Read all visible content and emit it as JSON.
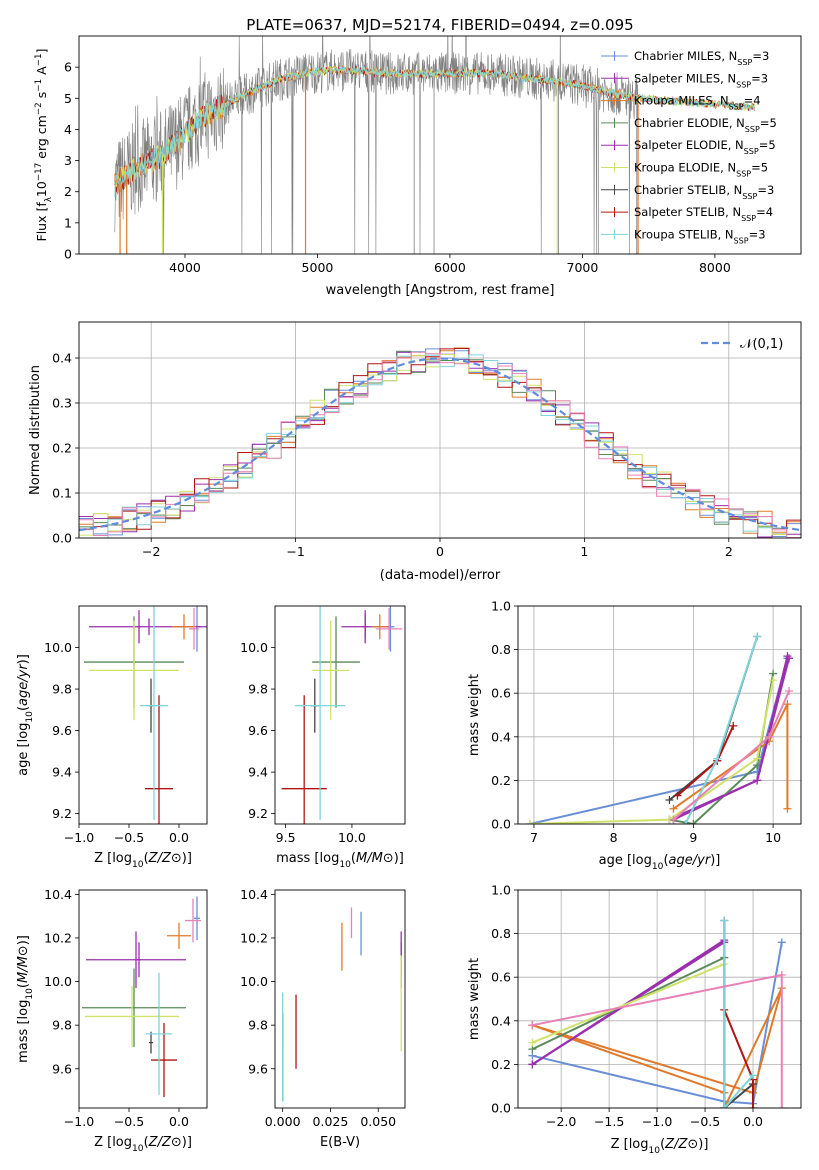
{
  "figure_title": "PLATE=0637, MJD=52174, FIBERID=0494, z=0.095",
  "colors": {
    "Chabrier MILES": "#6a8fd6",
    "Salpeter MILES": "#9b2fae",
    "Kroupa MILES": "#e07a2a",
    "Chabrier ELODIE": "#5a8a5a",
    "Salpeter ELODIE": "#9b2fae",
    "Kroupa ELODIE": "#cfe36a",
    "Chabrier STELIB": "#444444",
    "Salpeter STELIB": "#b01515",
    "Kroupa STELIB": "#7fd4dc",
    "data": "#808080",
    "pink": "#e882b6"
  },
  "chart_data": [
    {
      "id": "spectrum",
      "type": "line",
      "title": "PLATE=0637, MJD=52174, FIBERID=0494, z=0.095",
      "xlabel": "wavelength [Angstrom, rest frame]",
      "ylabel_parts": {
        "pre": "Flux [f",
        "sub1": "λ",
        "mid": "10",
        "sup1": "−17",
        "mid2": " erg cm",
        "sup2": "−2",
        "mid3": " s",
        "sup3": "−1",
        "mid4": " A",
        "sup4": "−1",
        "post": "]"
      },
      "xlim": [
        3200,
        8650
      ],
      "ylim": [
        0,
        7
      ],
      "xticks": [
        4000,
        5000,
        6000,
        7000,
        8000
      ],
      "yticks": [
        0,
        1,
        2,
        3,
        4,
        5,
        6
      ],
      "legend_position": "right",
      "legend": [
        {
          "name": "Chabrier MILES",
          "nssp": "3"
        },
        {
          "name": "Salpeter MILES",
          "nssp": "3"
        },
        {
          "name": "Kroupa MILES",
          "nssp": "4"
        },
        {
          "name": "Chabrier ELODIE",
          "nssp": "5"
        },
        {
          "name": "Salpeter ELODIE",
          "nssp": "5"
        },
        {
          "name": "Kroupa ELODIE",
          "nssp": "5"
        },
        {
          "name": "Chabrier STELIB",
          "nssp": "3"
        },
        {
          "name": "Salpeter STELIB",
          "nssp": "4"
        },
        {
          "name": "Kroupa STELIB",
          "nssp": "3"
        }
      ],
      "legend_nssp_label": "N",
      "legend_nssp_sub": "SSP",
      "continuum": [
        [
          3470,
          2.2
        ],
        [
          3600,
          2.7
        ],
        [
          3800,
          3.1
        ],
        [
          3950,
          3.6
        ],
        [
          4100,
          4.3
        ],
        [
          4300,
          4.8
        ],
        [
          4500,
          5.2
        ],
        [
          4700,
          5.6
        ],
        [
          4900,
          5.8
        ],
        [
          5100,
          5.9
        ],
        [
          5300,
          5.9
        ],
        [
          5500,
          5.8
        ],
        [
          5700,
          5.8
        ],
        [
          5900,
          5.8
        ],
        [
          6100,
          5.8
        ],
        [
          6300,
          5.8
        ],
        [
          6500,
          5.7
        ],
        [
          6700,
          5.6
        ],
        [
          6900,
          5.5
        ],
        [
          7100,
          5.3
        ],
        [
          7300,
          5.1
        ],
        [
          7420,
          5.0
        ]
      ],
      "data_range": [
        3470,
        7420
      ],
      "model_range": [
        3470,
        8300
      ]
    },
    {
      "id": "residuals",
      "type": "line",
      "xlabel": "(data-model)/error",
      "ylabel": "Normed distribution",
      "xlim": [
        -2.5,
        2.5
      ],
      "ylim": [
        0,
        0.48
      ],
      "xticks": [
        -2,
        -1,
        0,
        1,
        2
      ],
      "yticks": [
        0.0,
        0.1,
        0.2,
        0.3,
        0.4
      ],
      "legend_label": "𝒩(0,1)",
      "legend_position": "top-right",
      "bin_width": 0.1
    },
    {
      "id": "age-vs-Z",
      "type": "scatter",
      "xlabel": "Z [log10(Z/Z⊙)]",
      "ylabel": "age  [log10(age/yr)]",
      "xlim": [
        -1.0,
        0.28
      ],
      "ylim": [
        9.15,
        10.2
      ],
      "xticks": [
        -1.0,
        -0.5,
        0.0
      ],
      "yticks": [
        9.2,
        9.4,
        9.6,
        9.8,
        10.0
      ],
      "points": [
        {
          "x": 0.18,
          "y": 10.1,
          "xerr": 0.04,
          "yerr": 0.12,
          "c": "Chabrier MILES"
        },
        {
          "x": -0.3,
          "y": 10.1,
          "xerr": 0.6,
          "yerr": 0.04,
          "c": "Salpeter MILES"
        },
        {
          "x": 0.05,
          "y": 10.1,
          "xerr": 0.12,
          "yerr": 0.06,
          "c": "Kroupa MILES"
        },
        {
          "x": -0.45,
          "y": 9.93,
          "xerr": 0.5,
          "yerr": 0.22,
          "c": "Chabrier ELODIE"
        },
        {
          "x": -0.4,
          "y": 10.1,
          "xerr": 0.02,
          "yerr": 0.08,
          "c": "Salpeter ELODIE"
        },
        {
          "x": -0.45,
          "y": 9.89,
          "xerr": 0.45,
          "yerr": 0.24,
          "c": "Kroupa ELODIE"
        },
        {
          "x": -0.28,
          "y": 9.72,
          "xerr": 0.02,
          "yerr": 0.13,
          "c": "Chabrier STELIB"
        },
        {
          "x": -0.2,
          "y": 9.32,
          "xerr": 0.14,
          "yerr": 0.45,
          "c": "Salpeter STELIB"
        },
        {
          "x": -0.25,
          "y": 9.72,
          "xerr": 0.14,
          "yerr": 0.55,
          "c": "Kroupa STELIB"
        },
        {
          "x": 0.15,
          "y": 10.09,
          "xerr": 0.05,
          "yerr": 0.1,
          "c": "pink"
        }
      ]
    },
    {
      "id": "age-vs-mass",
      "type": "scatter",
      "xlabel": "mass [log10(M/M⊙)]",
      "ylabel": "",
      "xlim": [
        9.42,
        10.4
      ],
      "ylim": [
        9.15,
        10.2
      ],
      "xticks": [
        9.5,
        10.0
      ],
      "yticks": [
        9.2,
        9.4,
        9.6,
        9.8,
        10.0
      ],
      "points": [
        {
          "x": 10.29,
          "y": 10.1,
          "xerr": 0.03,
          "yerr": 0.12,
          "c": "Chabrier MILES"
        },
        {
          "x": 10.1,
          "y": 10.1,
          "xerr": 0.18,
          "yerr": 0.06,
          "c": "Salpeter MILES"
        },
        {
          "x": 10.21,
          "y": 10.1,
          "xerr": 0.06,
          "yerr": 0.06,
          "c": "Kroupa MILES"
        },
        {
          "x": 9.88,
          "y": 9.93,
          "xerr": 0.18,
          "yerr": 0.22,
          "c": "Chabrier ELODIE"
        },
        {
          "x": 10.1,
          "y": 10.1,
          "xerr": 0.02,
          "yerr": 0.08,
          "c": "Salpeter ELODIE"
        },
        {
          "x": 9.84,
          "y": 9.89,
          "xerr": 0.14,
          "yerr": 0.24,
          "c": "Kroupa ELODIE"
        },
        {
          "x": 9.72,
          "y": 9.72,
          "xerr": 0.03,
          "yerr": 0.13,
          "c": "Chabrier STELIB"
        },
        {
          "x": 9.64,
          "y": 9.32,
          "xerr": 0.17,
          "yerr": 0.45,
          "c": "Salpeter STELIB"
        },
        {
          "x": 9.76,
          "y": 9.72,
          "xerr": 0.19,
          "yerr": 0.55,
          "c": "Kroupa STELIB"
        },
        {
          "x": 10.28,
          "y": 10.09,
          "xerr": 0.1,
          "yerr": 0.1,
          "c": "pink"
        }
      ]
    },
    {
      "id": "weight-vs-age",
      "type": "line",
      "xlabel": "age  [log10(age/yr)]",
      "ylabel": "mass weight",
      "xlim": [
        6.8,
        10.35
      ],
      "ylim": [
        0.0,
        1.0
      ],
      "xticks": [
        7,
        8,
        9,
        10
      ],
      "yticks": [
        0.0,
        0.2,
        0.4,
        0.6,
        0.8,
        1.0
      ],
      "series": [
        {
          "c": "Chabrier MILES",
          "x": [
            6.95,
            9.8,
            10.18
          ],
          "y": [
            0.0,
            0.24,
            0.76
          ]
        },
        {
          "c": "Salpeter MILES",
          "x": [
            8.7,
            9.8,
            10.18
          ],
          "y": [
            0.02,
            0.2,
            0.77
          ]
        },
        {
          "c": "Kroupa MILES",
          "x": [
            8.75,
            9.95,
            10.18,
            10.18
          ],
          "y": [
            0.07,
            0.38,
            0.55,
            0.07
          ]
        },
        {
          "c": "Chabrier ELODIE",
          "x": [
            8.7,
            9.0,
            9.8,
            10.0
          ],
          "y": [
            0.02,
            0.0,
            0.27,
            0.69
          ]
        },
        {
          "c": "Salpeter ELODIE",
          "x": [
            8.75,
            9.8,
            10.2
          ],
          "y": [
            0.02,
            0.2,
            0.76
          ]
        },
        {
          "c": "Kroupa ELODIE",
          "x": [
            6.95,
            8.7,
            9.8,
            10.0
          ],
          "y": [
            0.0,
            0.02,
            0.3,
            0.66
          ]
        },
        {
          "c": "Chabrier STELIB",
          "x": [
            8.7,
            9.3,
            9.8
          ],
          "y": [
            0.11,
            0.29,
            0.86
          ]
        },
        {
          "c": "Salpeter STELIB",
          "x": [
            8.8,
            9.3,
            9.5
          ],
          "y": [
            0.13,
            0.29,
            0.45
          ]
        },
        {
          "c": "Kroupa STELIB",
          "x": [
            8.9,
            9.3,
            9.8
          ],
          "y": [
            0.0,
            0.3,
            0.86
          ]
        },
        {
          "c": "pink",
          "x": [
            8.75,
            9.95,
            10.2
          ],
          "y": [
            0.02,
            0.4,
            0.61
          ]
        }
      ]
    },
    {
      "id": "mass-vs-Z",
      "type": "scatter",
      "xlabel": "Z [log10(Z/Z⊙)]",
      "ylabel": "mass [log10(M/M⊙)]",
      "xlim": [
        -1.0,
        0.28
      ],
      "ylim": [
        9.42,
        10.42
      ],
      "xticks": [
        -1.0,
        -0.5,
        0.0
      ],
      "yticks": [
        9.6,
        9.8,
        10.0,
        10.2,
        10.4
      ],
      "points": [
        {
          "x": 0.18,
          "y": 10.29,
          "xerr": 0.03,
          "yerr": 0.1,
          "c": "Chabrier MILES"
        },
        {
          "x": -0.43,
          "y": 10.1,
          "xerr": 0.5,
          "yerr": 0.13,
          "c": "Salpeter MILES"
        },
        {
          "x": 0.0,
          "y": 10.21,
          "xerr": 0.12,
          "yerr": 0.06,
          "c": "Kroupa MILES"
        },
        {
          "x": -0.45,
          "y": 9.88,
          "xerr": 0.52,
          "yerr": 0.18,
          "c": "Chabrier ELODIE"
        },
        {
          "x": -0.4,
          "y": 10.1,
          "xerr": 0.02,
          "yerr": 0.08,
          "c": "Salpeter ELODIE"
        },
        {
          "x": -0.47,
          "y": 9.84,
          "xerr": 0.47,
          "yerr": 0.14,
          "c": "Kroupa ELODIE"
        },
        {
          "x": -0.28,
          "y": 9.72,
          "xerr": 0.02,
          "yerr": 0.05,
          "c": "Chabrier STELIB"
        },
        {
          "x": -0.15,
          "y": 9.64,
          "xerr": 0.13,
          "yerr": 0.17,
          "c": "Salpeter STELIB"
        },
        {
          "x": -0.2,
          "y": 9.76,
          "xerr": 0.13,
          "yerr": 0.28,
          "c": "Kroupa STELIB"
        },
        {
          "x": 0.14,
          "y": 10.28,
          "xerr": 0.08,
          "yerr": 0.1,
          "c": "pink"
        }
      ]
    },
    {
      "id": "mass-vs-EBV",
      "type": "scatter",
      "xlabel": "E(B-V)",
      "ylabel": "",
      "xlim": [
        -0.004,
        0.064
      ],
      "ylim": [
        9.42,
        10.42
      ],
      "xticks": [
        0.0,
        0.025,
        0.05
      ],
      "xtick_labels": [
        "0.000",
        "0.025",
        "0.050"
      ],
      "yticks": [
        9.6,
        9.8,
        10.0,
        10.2,
        10.4
      ],
      "points": [
        {
          "x": 0.041,
          "y": 10.22,
          "xerr": 0,
          "yerr": 0.1,
          "c": "Chabrier MILES"
        },
        {
          "x": 0.062,
          "y": 10.1,
          "xerr": 0,
          "yerr": 0.13,
          "c": "Salpeter MILES"
        },
        {
          "x": 0.031,
          "y": 10.16,
          "xerr": 0,
          "yerr": 0.11,
          "c": "Kroupa MILES"
        },
        {
          "x": 0.0,
          "y": 9.78,
          "xerr": 0,
          "yerr": 0.08,
          "c": "Chabrier ELODIE"
        },
        {
          "x": 0.062,
          "y": 10.1,
          "xerr": 0,
          "yerr": 0.08,
          "c": "Salpeter ELODIE"
        },
        {
          "x": 0.062,
          "y": 9.9,
          "xerr": 0,
          "yerr": 0.22,
          "c": "Kroupa ELODIE"
        },
        {
          "x": 0.0,
          "y": 9.65,
          "xerr": 0,
          "yerr": 0.2,
          "c": "Chabrier STELIB"
        },
        {
          "x": 0.007,
          "y": 9.77,
          "xerr": 0,
          "yerr": 0.17,
          "c": "Salpeter STELIB"
        },
        {
          "x": 0.0,
          "y": 9.7,
          "xerr": 0,
          "yerr": 0.25,
          "c": "Kroupa STELIB"
        },
        {
          "x": 0.036,
          "y": 10.27,
          "xerr": 0,
          "yerr": 0.07,
          "c": "pink"
        }
      ]
    },
    {
      "id": "weight-vs-Z",
      "type": "line",
      "xlabel": "Z [log10(Z/Z⊙)]",
      "ylabel": "mass weight",
      "xlim": [
        -2.45,
        0.5
      ],
      "ylim": [
        0.0,
        1.0
      ],
      "xticks": [
        -2.0,
        -1.5,
        -1.0,
        -0.5,
        0.0
      ],
      "yticks": [
        0.0,
        0.2,
        0.4,
        0.6,
        0.8,
        1.0
      ],
      "series": [
        {
          "c": "Chabrier MILES",
          "x": [
            -2.3,
            -0.3,
            0.0,
            0.3
          ],
          "y": [
            0.24,
            0.03,
            0.02,
            0.76
          ]
        },
        {
          "c": "Salpeter MILES",
          "x": [
            -2.3,
            -0.3
          ],
          "y": [
            0.2,
            0.77
          ]
        },
        {
          "c": "Kroupa MILES",
          "x": [
            -2.3,
            -0.3,
            -0.3,
            0.3,
            0.0,
            -2.3
          ],
          "y": [
            0.38,
            0.07,
            0.0,
            0.55,
            0.07,
            0.38
          ]
        },
        {
          "c": "Chabrier ELODIE",
          "x": [
            -2.3,
            -0.3
          ],
          "y": [
            0.27,
            0.69
          ]
        },
        {
          "c": "Salpeter ELODIE",
          "x": [
            -2.3,
            -0.3
          ],
          "y": [
            0.2,
            0.76
          ]
        },
        {
          "c": "Kroupa ELODIE",
          "x": [
            -2.3,
            -0.3
          ],
          "y": [
            0.3,
            0.66
          ]
        },
        {
          "c": "Chabrier STELIB",
          "x": [
            -0.3,
            -0.3,
            0.0
          ],
          "y": [
            0.86,
            0.0,
            0.11
          ]
        },
        {
          "c": "Salpeter STELIB",
          "x": [
            -0.3,
            0.0,
            0.0
          ],
          "y": [
            0.45,
            0.13,
            0.0
          ]
        },
        {
          "c": "Kroupa STELIB",
          "x": [
            -0.3,
            -0.3,
            0.0
          ],
          "y": [
            0.86,
            0.0,
            0.15
          ]
        },
        {
          "c": "pink",
          "x": [
            -2.3,
            0.3,
            0.3
          ],
          "y": [
            0.38,
            0.61,
            0.0
          ]
        }
      ]
    }
  ]
}
